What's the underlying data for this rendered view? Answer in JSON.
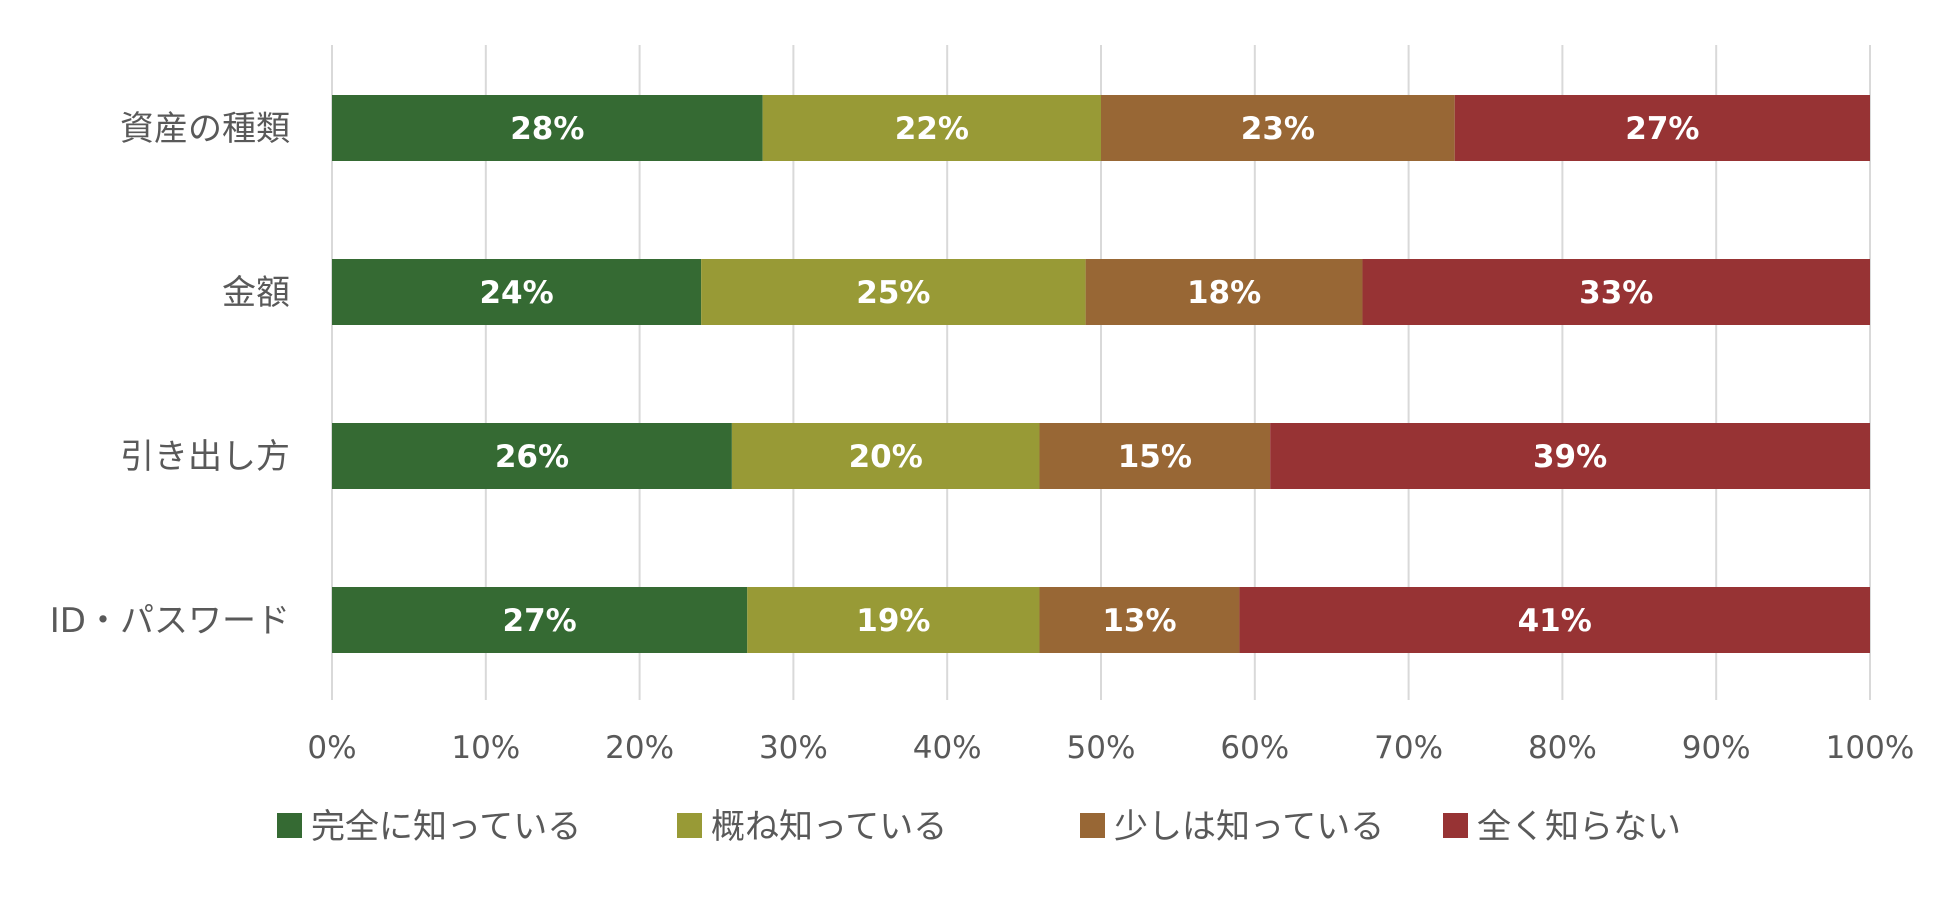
{
  "chart_data": {
    "type": "bar",
    "orientation": "horizontal",
    "stacked": true,
    "categories": [
      "資産の種類",
      "金額",
      "引き出し方",
      "ID・パスワード"
    ],
    "series": [
      {
        "name": "完全に知っている",
        "color": "#356a33",
        "values": [
          28,
          24,
          26,
          27
        ]
      },
      {
        "name": "概ね知っている",
        "color": "#989a36",
        "values": [
          22,
          25,
          20,
          19
        ]
      },
      {
        "name": "少しは知っている",
        "color": "#986735",
        "values": [
          23,
          18,
          15,
          13
        ]
      },
      {
        "name": "全く知らない",
        "color": "#973334",
        "values": [
          27,
          33,
          39,
          41
        ]
      }
    ],
    "data_labels": [
      [
        "28%",
        "24%",
        "26%",
        "27%"
      ],
      [
        "22%",
        "25%",
        "20%",
        "19%"
      ],
      [
        "23%",
        "18%",
        "15%",
        "13%"
      ],
      [
        "27%",
        "33%",
        "39%",
        "41%"
      ]
    ],
    "xlim": [
      0,
      100
    ],
    "xticks": [
      "0%",
      "10%",
      "20%",
      "30%",
      "40%",
      "50%",
      "60%",
      "70%",
      "80%",
      "90%",
      "100%"
    ],
    "grid": true,
    "legend": "bottom",
    "title": "",
    "xlabel": "",
    "ylabel": ""
  }
}
